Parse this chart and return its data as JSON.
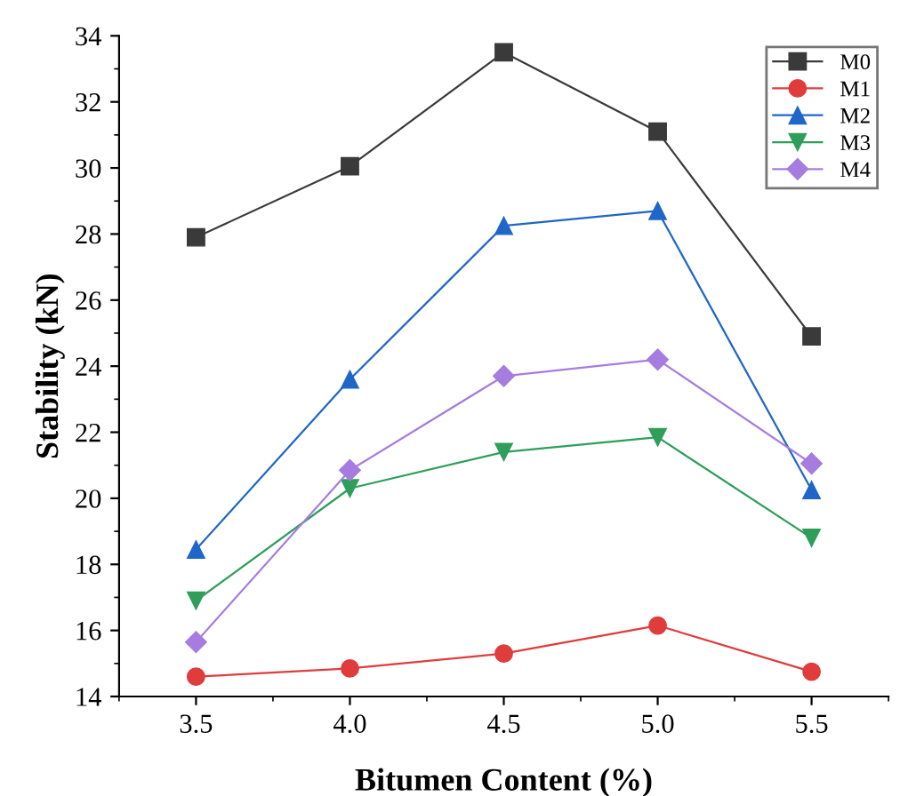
{
  "chart_data": {
    "type": "line",
    "xlabel": "Bitumen Content (%)",
    "ylabel": "Stability (kN)",
    "x": [
      3.5,
      4.0,
      4.5,
      5.0,
      5.5
    ],
    "xlim": [
      3.25,
      5.75
    ],
    "ylim": [
      14,
      34
    ],
    "xticks": [
      {
        "value": 3.5,
        "label": "3.5"
      },
      {
        "value": 4.0,
        "label": "4.0"
      },
      {
        "value": 4.5,
        "label": "4.5"
      },
      {
        "value": 5.0,
        "label": "5.0"
      },
      {
        "value": 5.5,
        "label": "5.5"
      }
    ],
    "yticks": [
      14,
      16,
      18,
      20,
      22,
      24,
      26,
      28,
      30,
      32,
      34
    ],
    "legend": "top right",
    "grid": false,
    "series": [
      {
        "name": "M0",
        "color": "#3a3a3a",
        "marker": "square",
        "values": [
          27.9,
          30.05,
          33.5,
          31.1,
          24.9
        ]
      },
      {
        "name": "M1",
        "color": "#e03c3c",
        "marker": "circle",
        "values": [
          14.6,
          14.85,
          15.3,
          16.15,
          14.75
        ]
      },
      {
        "name": "M2",
        "color": "#1f66c8",
        "marker": "triangle",
        "values": [
          18.45,
          23.6,
          28.25,
          28.7,
          20.25
        ]
      },
      {
        "name": "M3",
        "color": "#2e9e5a",
        "marker": "triangle_down",
        "values": [
          16.9,
          20.3,
          21.4,
          21.85,
          18.8
        ]
      },
      {
        "name": "M4",
        "color": "#a67ce0",
        "marker": "diamond",
        "values": [
          15.65,
          20.85,
          23.7,
          24.2,
          21.05
        ]
      }
    ]
  }
}
